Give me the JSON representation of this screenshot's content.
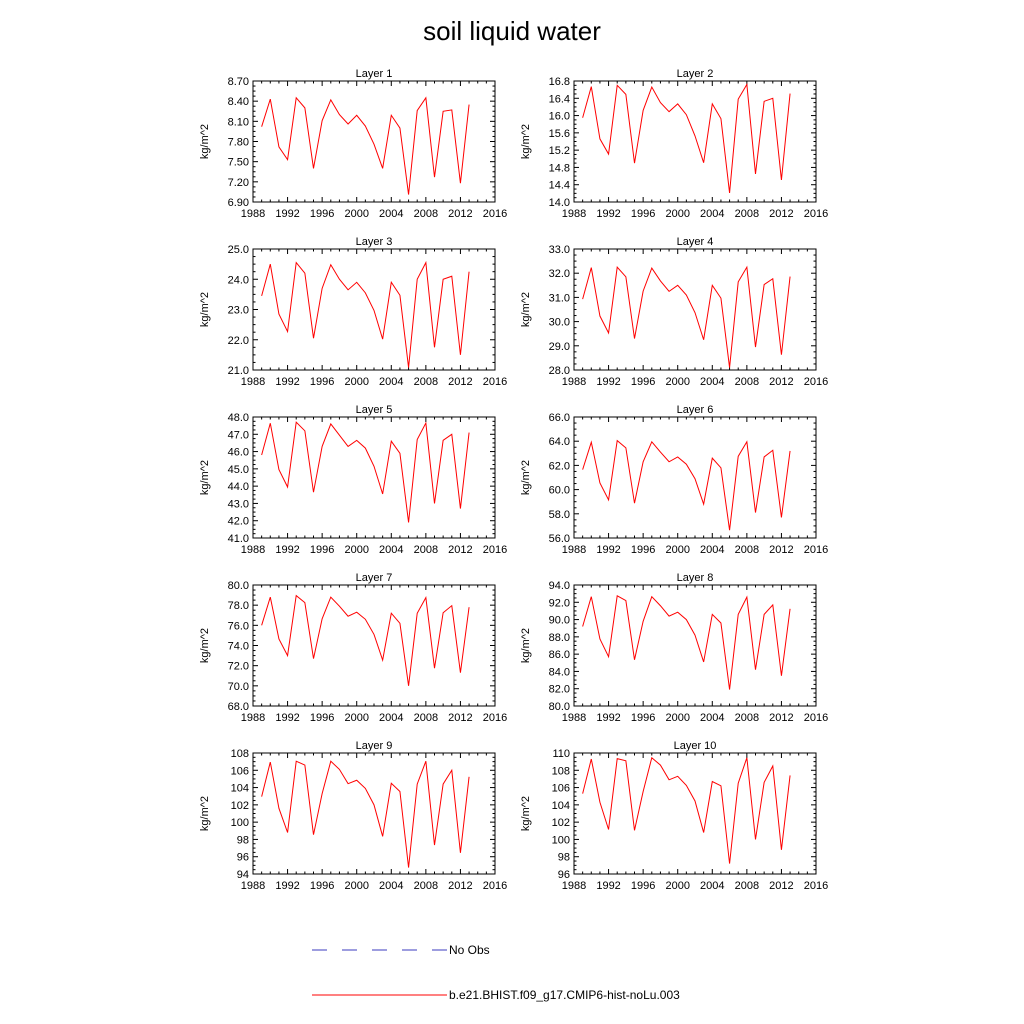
{
  "figure": {
    "title": "soil liquid water"
  },
  "legend": {
    "items": [
      {
        "label": "No Obs",
        "color": "#3b3bbf",
        "style": "dashed"
      },
      {
        "label": "b.e21.BHIST.f09_g17.CMIP6-hist-noLu.003",
        "color": "#ff0000",
        "style": "solid"
      }
    ]
  },
  "chart_data": [
    {
      "type": "line",
      "title": "Layer 1",
      "ylabel": "kg/m^2",
      "xlim": [
        1988,
        2016
      ],
      "xticks": [
        1988,
        1992,
        1996,
        2000,
        2004,
        2008,
        2012,
        2016
      ],
      "ylim": [
        6.9,
        8.7
      ],
      "yticks": [
        "6.90",
        "7.20",
        "7.50",
        "7.80",
        "8.10",
        "8.40",
        "8.70"
      ],
      "series": [
        {
          "color": "#ff0000",
          "x": [
            1989,
            1990,
            1991,
            1992,
            1993,
            1994,
            1995,
            1996,
            1997,
            1998,
            1999,
            2000,
            2001,
            2002,
            2003,
            2004,
            2005,
            2006,
            2007,
            2008,
            2009,
            2010,
            2011,
            2012,
            2013
          ],
          "y": [
            8.02,
            8.43,
            7.72,
            7.53,
            8.45,
            8.3,
            7.4,
            8.11,
            8.42,
            8.2,
            8.06,
            8.19,
            8.03,
            7.76,
            7.4,
            8.19,
            8.0,
            7.01,
            8.26,
            8.45,
            7.27,
            8.25,
            8.27,
            7.18,
            8.35
          ]
        }
      ]
    },
    {
      "type": "line",
      "title": "Layer 2",
      "ylabel": "kg/m^2",
      "xlim": [
        1988,
        2016
      ],
      "xticks": [
        1988,
        1992,
        1996,
        2000,
        2004,
        2008,
        2012,
        2016
      ],
      "ylim": [
        14.0,
        16.8
      ],
      "yticks": [
        "14.0",
        "14.4",
        "14.8",
        "15.2",
        "15.6",
        "16.0",
        "16.4",
        "16.8"
      ],
      "series": [
        {
          "color": "#ff0000",
          "x": [
            1989,
            1990,
            1991,
            1992,
            1993,
            1994,
            1995,
            1996,
            1997,
            1998,
            1999,
            2000,
            2001,
            2002,
            2003,
            2004,
            2005,
            2006,
            2007,
            2008,
            2009,
            2010,
            2011,
            2012,
            2013
          ],
          "y": [
            15.95,
            16.67,
            15.46,
            15.11,
            16.7,
            16.49,
            14.9,
            16.12,
            16.66,
            16.3,
            16.09,
            16.27,
            16.02,
            15.53,
            14.91,
            16.27,
            15.93,
            14.21,
            16.38,
            16.72,
            14.65,
            16.33,
            16.4,
            14.51,
            16.51
          ]
        }
      ]
    },
    {
      "type": "line",
      "title": "Layer 3",
      "ylabel": "kg/m^2",
      "xlim": [
        1988,
        2016
      ],
      "xticks": [
        1988,
        1992,
        1996,
        2000,
        2004,
        2008,
        2012,
        2016
      ],
      "ylim": [
        21.0,
        25.0
      ],
      "yticks": [
        "21.0",
        "22.0",
        "23.0",
        "24.0",
        "25.0"
      ],
      "series": [
        {
          "color": "#ff0000",
          "x": [
            1989,
            1990,
            1991,
            1992,
            1993,
            1994,
            1995,
            1996,
            1997,
            1998,
            1999,
            2000,
            2001,
            2002,
            2003,
            2004,
            2005,
            2006,
            2007,
            2008,
            2009,
            2010,
            2011,
            2012,
            2013
          ],
          "y": [
            23.45,
            24.5,
            22.85,
            22.27,
            24.55,
            24.2,
            22.05,
            23.7,
            24.48,
            24.0,
            23.65,
            23.9,
            23.55,
            22.97,
            22.02,
            23.9,
            23.47,
            21.08,
            24.0,
            24.55,
            21.75,
            24.0,
            24.1,
            21.5,
            24.25
          ]
        }
      ]
    },
    {
      "type": "line",
      "title": "Layer 4",
      "ylabel": "kg/m^2",
      "xlim": [
        1988,
        2016
      ],
      "xticks": [
        1988,
        1992,
        1996,
        2000,
        2004,
        2008,
        2012,
        2016
      ],
      "ylim": [
        28.0,
        33.0
      ],
      "yticks": [
        "28.0",
        "29.0",
        "30.0",
        "31.0",
        "32.0",
        "33.0"
      ],
      "series": [
        {
          "color": "#ff0000",
          "x": [
            1989,
            1990,
            1991,
            1992,
            1993,
            1994,
            1995,
            1996,
            1997,
            1998,
            1999,
            2000,
            2001,
            2002,
            2003,
            2004,
            2005,
            2006,
            2007,
            2008,
            2009,
            2010,
            2011,
            2012,
            2013
          ],
          "y": [
            30.93,
            32.23,
            30.23,
            29.53,
            32.25,
            31.85,
            29.3,
            31.26,
            32.21,
            31.68,
            31.25,
            31.5,
            31.1,
            30.37,
            29.25,
            31.5,
            30.97,
            28.1,
            31.64,
            32.25,
            28.95,
            31.53,
            31.77,
            28.63,
            31.86
          ]
        }
      ]
    },
    {
      "type": "line",
      "title": "Layer 5",
      "ylabel": "kg/m^2",
      "xlim": [
        1988,
        2016
      ],
      "xticks": [
        1988,
        1992,
        1996,
        2000,
        2004,
        2008,
        2012,
        2016
      ],
      "ylim": [
        41.0,
        48.0
      ],
      "yticks": [
        "41.0",
        "42.0",
        "43.0",
        "44.0",
        "45.0",
        "46.0",
        "47.0",
        "48.0"
      ],
      "series": [
        {
          "color": "#ff0000",
          "x": [
            1989,
            1990,
            1991,
            1992,
            1993,
            1994,
            1995,
            1996,
            1997,
            1998,
            1999,
            2000,
            2001,
            2002,
            2003,
            2004,
            2005,
            2006,
            2007,
            2008,
            2009,
            2010,
            2011,
            2012,
            2013
          ],
          "y": [
            45.8,
            47.64,
            44.96,
            43.95,
            47.7,
            47.2,
            43.65,
            46.3,
            47.6,
            46.95,
            46.3,
            46.65,
            46.2,
            45.15,
            43.55,
            46.6,
            45.9,
            41.9,
            46.7,
            47.65,
            43.0,
            46.65,
            47.0,
            42.7,
            47.1
          ]
        }
      ]
    },
    {
      "type": "line",
      "title": "Layer 6",
      "ylabel": "kg/m^2",
      "xlim": [
        1988,
        2016
      ],
      "xticks": [
        1988,
        1992,
        1996,
        2000,
        2004,
        2008,
        2012,
        2016
      ],
      "ylim": [
        56.0,
        66.0
      ],
      "yticks": [
        "56.0",
        "58.0",
        "60.0",
        "62.0",
        "64.0",
        "66.0"
      ],
      "series": [
        {
          "color": "#ff0000",
          "x": [
            1989,
            1990,
            1991,
            1992,
            1993,
            1994,
            1995,
            1996,
            1997,
            1998,
            1999,
            2000,
            2001,
            2002,
            2003,
            2004,
            2005,
            2006,
            2007,
            2008,
            2009,
            2010,
            2011,
            2012,
            2013
          ],
          "y": [
            61.65,
            63.92,
            60.55,
            59.15,
            64.05,
            63.45,
            58.88,
            62.3,
            63.95,
            63.1,
            62.3,
            62.7,
            62.1,
            60.9,
            58.8,
            62.6,
            61.8,
            56.65,
            62.75,
            63.95,
            58.1,
            62.7,
            63.25,
            57.7,
            63.2
          ]
        }
      ]
    },
    {
      "type": "line",
      "title": "Layer 7",
      "ylabel": "kg/m^2",
      "xlim": [
        1988,
        2016
      ],
      "xticks": [
        1988,
        1992,
        1996,
        2000,
        2004,
        2008,
        2012,
        2016
      ],
      "ylim": [
        68.0,
        80.0
      ],
      "yticks": [
        "68.0",
        "70.0",
        "72.0",
        "74.0",
        "76.0",
        "78.0",
        "80.0"
      ],
      "series": [
        {
          "color": "#ff0000",
          "x": [
            1989,
            1990,
            1991,
            1992,
            1993,
            1994,
            1995,
            1996,
            1997,
            1998,
            1999,
            2000,
            2001,
            2002,
            2003,
            2004,
            2005,
            2006,
            2007,
            2008,
            2009,
            2010,
            2011,
            2012,
            2013
          ],
          "y": [
            76.0,
            78.8,
            74.65,
            73.0,
            78.95,
            78.25,
            72.7,
            76.65,
            78.8,
            77.9,
            76.9,
            77.3,
            76.6,
            75.1,
            72.55,
            77.2,
            76.2,
            70.0,
            77.2,
            78.75,
            71.75,
            77.25,
            77.95,
            71.3,
            77.8
          ]
        }
      ]
    },
    {
      "type": "line",
      "title": "Layer 8",
      "ylabel": "kg/m^2",
      "xlim": [
        1988,
        2016
      ],
      "xticks": [
        1988,
        1992,
        1996,
        2000,
        2004,
        2008,
        2012,
        2016
      ],
      "ylim": [
        80.0,
        94.0
      ],
      "yticks": [
        "80.0",
        "82.0",
        "84.0",
        "86.0",
        "88.0",
        "90.0",
        "92.0",
        "94.0"
      ],
      "series": [
        {
          "color": "#ff0000",
          "x": [
            1989,
            1990,
            1991,
            1992,
            1993,
            1994,
            1995,
            1996,
            1997,
            1998,
            1999,
            2000,
            2001,
            2002,
            2003,
            2004,
            2005,
            2006,
            2007,
            2008,
            2009,
            2010,
            2011,
            2012,
            2013
          ],
          "y": [
            89.2,
            92.65,
            87.75,
            85.7,
            92.75,
            92.2,
            85.35,
            89.8,
            92.65,
            91.6,
            90.4,
            90.85,
            90.0,
            88.2,
            85.1,
            90.6,
            89.6,
            81.9,
            90.6,
            92.6,
            84.2,
            90.6,
            91.7,
            83.5,
            91.25
          ]
        }
      ]
    },
    {
      "type": "line",
      "title": "Layer 9",
      "ylabel": "kg/m^2",
      "xlim": [
        1988,
        2016
      ],
      "xticks": [
        1988,
        1992,
        1996,
        2000,
        2004,
        2008,
        2012,
        2016
      ],
      "ylim": [
        94,
        108
      ],
      "yticks": [
        "94",
        "96",
        "98",
        "100",
        "102",
        "104",
        "106",
        "108"
      ],
      "series": [
        {
          "color": "#ff0000",
          "x": [
            1989,
            1990,
            1991,
            1992,
            1993,
            1994,
            1995,
            1996,
            1997,
            1998,
            1999,
            2000,
            2001,
            2002,
            2003,
            2004,
            2005,
            2006,
            2007,
            2008,
            2009,
            2010,
            2011,
            2012,
            2013
          ],
          "y": [
            102.95,
            106.95,
            101.6,
            98.8,
            107.05,
            106.6,
            98.55,
            103.3,
            107.05,
            106.1,
            104.45,
            104.85,
            103.9,
            102.0,
            98.35,
            104.5,
            103.55,
            94.75,
            104.4,
            107.05,
            97.35,
            104.4,
            106.0,
            96.45,
            105.25
          ]
        }
      ]
    },
    {
      "type": "line",
      "title": "Layer 10",
      "ylabel": "kg/m^2",
      "xlim": [
        1988,
        2016
      ],
      "xticks": [
        1988,
        1992,
        1996,
        2000,
        2004,
        2008,
        2012,
        2016
      ],
      "ylim": [
        96,
        110
      ],
      "yticks": [
        "96",
        "98",
        "100",
        "102",
        "104",
        "106",
        "108",
        "110"
      ],
      "series": [
        {
          "color": "#ff0000",
          "x": [
            1989,
            1990,
            1991,
            1992,
            1993,
            1994,
            1995,
            1996,
            1997,
            1998,
            1999,
            2000,
            2001,
            2002,
            2003,
            2004,
            2005,
            2006,
            2007,
            2008,
            2009,
            2010,
            2011,
            2012,
            2013
          ],
          "y": [
            105.3,
            109.3,
            104.3,
            101.15,
            109.35,
            109.1,
            101.05,
            105.55,
            109.45,
            108.6,
            106.9,
            107.3,
            106.25,
            104.45,
            100.8,
            106.7,
            106.2,
            97.2,
            106.5,
            109.45,
            100.0,
            106.6,
            108.5,
            98.8,
            107.4
          ]
        }
      ]
    }
  ]
}
